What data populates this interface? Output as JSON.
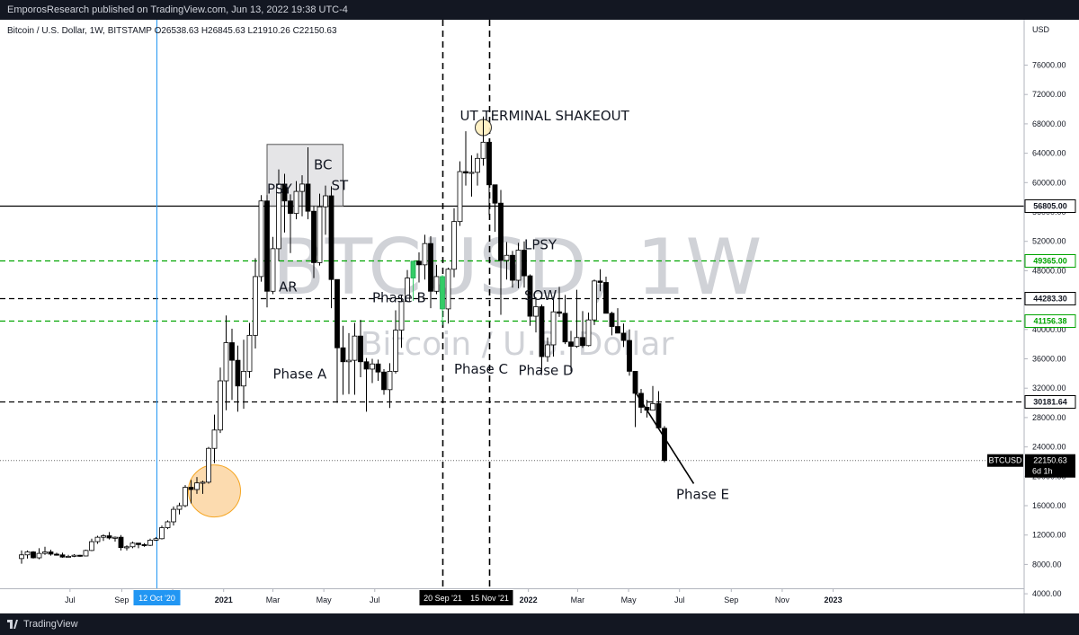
{
  "header": {
    "publish_text": "EmporosResearch published on TradingView.com, Jun 13, 2022 19:38 UTC-4"
  },
  "footer": {
    "brand": "TradingView",
    "logo_icon": "tradingview-logo-icon"
  },
  "chart_data": {
    "type": "candlestick",
    "symbol_line": "Bitcoin / U.S. Dollar, 1W, BITSTAMP  O26538.63  H26845.63  L21910.26  C22150.63",
    "watermark": {
      "ticker": "BTCUSD, 1W",
      "name": "Bitcoin / U.S. Dollar"
    },
    "y_axis": {
      "unit_label": "USD",
      "range": [
        1500,
        80000
      ],
      "ticks": [
        "4000.00",
        "8000.00",
        "12000.00",
        "16000.00",
        "20000.00",
        "24000.00",
        "28000.00",
        "32000.00",
        "36000.00",
        "40000.00",
        "44000.00",
        "48000.00",
        "52000.00",
        "56000.00",
        "60000.00",
        "64000.00",
        "68000.00",
        "72000.00",
        "76000.00"
      ]
    },
    "x_axis": {
      "ticks": [
        "Jul",
        "Sep",
        "Nov",
        "2021",
        "Mar",
        "May",
        "Jul",
        "2022",
        "Mar",
        "May",
        "Jul",
        "Sep",
        "Nov",
        "2023"
      ],
      "highlighted_labels": [
        "12 Oct '20",
        "20 Sep '21",
        "15 Nov '21"
      ]
    },
    "colors": {
      "up": "#ffffff",
      "down": "#000000",
      "green_line": "#00a400",
      "blue_line": "#2196f3",
      "highlight_green": "#33cc66"
    },
    "horizontal_levels": [
      {
        "value": 56805.0,
        "label": "56805.00",
        "style": "solid",
        "color": "#000000"
      },
      {
        "value": 49365.0,
        "label": "49365.00",
        "style": "dashed",
        "color": "#00a400"
      },
      {
        "value": 44283.3,
        "label": "44283.30",
        "style": "dashed",
        "color": "#000000"
      },
      {
        "value": 41156.38,
        "label": "41156.38",
        "style": "dashed",
        "color": "#00a400"
      },
      {
        "value": 30181.64,
        "label": "30181.64",
        "style": "dashed",
        "color": "#000000"
      }
    ],
    "price_label": {
      "symbol": "BTCUSD",
      "value": "22150.63",
      "countdown": "6d 1h",
      "price": 22150.63
    },
    "vertical_lines": [
      {
        "date": "2020-10-12",
        "label": "12 Oct '20",
        "style": "solid",
        "color": "#2196f3"
      },
      {
        "date": "2021-09-20",
        "label": "20 Sep '21",
        "style": "dashed",
        "color": "#000000"
      },
      {
        "date": "2021-11-15",
        "label": "15 Nov '21",
        "style": "dashed",
        "color": "#000000"
      }
    ],
    "annotations": [
      {
        "text": "PSY",
        "date": "2021-02-22",
        "price": 58500
      },
      {
        "text": "BC",
        "date": "2021-04-19",
        "price": 61800
      },
      {
        "text": "ST",
        "date": "2021-05-10",
        "price": 59000
      },
      {
        "text": "AR",
        "date": "2021-03-08",
        "price": 45200
      },
      {
        "text": "Phase A",
        "date": "2021-03-01",
        "price": 33300
      },
      {
        "text": "Phase B",
        "date": "2021-06-28",
        "price": 43700
      },
      {
        "text": "UT TERMINAL SHAKEOUT",
        "date": "2021-10-11",
        "price": 68500
      },
      {
        "text": "Phase C",
        "date": "2021-10-04",
        "price": 34000
      },
      {
        "text": "LPSY",
        "date": "2021-12-27",
        "price": 50900
      },
      {
        "text": "SOW",
        "date": "2021-12-27",
        "price": 44000
      },
      {
        "text": "Phase D",
        "date": "2021-12-20",
        "price": 33800
      },
      {
        "text": "Phase E",
        "date": "2022-06-27",
        "price": 16900
      }
    ],
    "shapes": [
      {
        "kind": "rectangle",
        "from": "2021-02-22",
        "to": "2021-05-24",
        "price_low": 56800,
        "price_high": 65200
      },
      {
        "kind": "circle",
        "center_date": "2020-12-21",
        "center_price": 18000
      },
      {
        "kind": "circle",
        "center_date": "2021-11-08",
        "center_price": 67500
      },
      {
        "kind": "trendline",
        "from_date": "2022-05-09",
        "from_price": 31500,
        "to_date": "2022-07-18",
        "to_price": 19000
      }
    ],
    "candles": [
      {
        "date": "2020-05-04",
        "o": 8800,
        "h": 9900,
        "l": 8100,
        "c": 9300
      },
      {
        "date": "2020-05-11",
        "o": 9300,
        "h": 9900,
        "l": 8800,
        "c": 9700
      },
      {
        "date": "2020-05-18",
        "o": 9700,
        "h": 9800,
        "l": 8800,
        "c": 8900
      },
      {
        "date": "2020-05-25",
        "o": 8900,
        "h": 10200,
        "l": 8700,
        "c": 9500
      },
      {
        "date": "2020-06-01",
        "o": 9500,
        "h": 10400,
        "l": 9300,
        "c": 9700
      },
      {
        "date": "2020-06-08",
        "o": 9700,
        "h": 10000,
        "l": 9200,
        "c": 9400
      },
      {
        "date": "2020-06-15",
        "o": 9400,
        "h": 9600,
        "l": 9200,
        "c": 9300
      },
      {
        "date": "2020-06-22",
        "o": 9300,
        "h": 9600,
        "l": 8900,
        "c": 9000
      },
      {
        "date": "2020-06-29",
        "o": 9000,
        "h": 9300,
        "l": 8900,
        "c": 9100
      },
      {
        "date": "2020-07-06",
        "o": 9100,
        "h": 9400,
        "l": 9000,
        "c": 9250
      },
      {
        "date": "2020-07-13",
        "o": 9250,
        "h": 9300,
        "l": 9050,
        "c": 9150
      },
      {
        "date": "2020-07-20",
        "o": 9150,
        "h": 10000,
        "l": 9100,
        "c": 9900
      },
      {
        "date": "2020-07-27",
        "o": 9900,
        "h": 11500,
        "l": 9800,
        "c": 11100
      },
      {
        "date": "2020-08-03",
        "o": 11100,
        "h": 11900,
        "l": 10800,
        "c": 11700
      },
      {
        "date": "2020-08-10",
        "o": 11700,
        "h": 12100,
        "l": 11200,
        "c": 11900
      },
      {
        "date": "2020-08-17",
        "o": 11900,
        "h": 12400,
        "l": 11400,
        "c": 11600
      },
      {
        "date": "2020-08-24",
        "o": 11600,
        "h": 11800,
        "l": 11100,
        "c": 11700
      },
      {
        "date": "2020-08-31",
        "o": 11700,
        "h": 12000,
        "l": 9900,
        "c": 10300
      },
      {
        "date": "2020-09-07",
        "o": 10300,
        "h": 10600,
        "l": 9900,
        "c": 10400
      },
      {
        "date": "2020-09-14",
        "o": 10400,
        "h": 11100,
        "l": 10200,
        "c": 10900
      },
      {
        "date": "2020-09-21",
        "o": 10900,
        "h": 10900,
        "l": 10200,
        "c": 10700
      },
      {
        "date": "2020-09-28",
        "o": 10700,
        "h": 10900,
        "l": 10400,
        "c": 10600
      },
      {
        "date": "2020-10-05",
        "o": 10600,
        "h": 11500,
        "l": 10500,
        "c": 11300
      },
      {
        "date": "2020-10-12",
        "o": 11300,
        "h": 11700,
        "l": 11200,
        "c": 11500
      },
      {
        "date": "2020-10-19",
        "o": 11500,
        "h": 13300,
        "l": 11400,
        "c": 13000
      },
      {
        "date": "2020-10-26",
        "o": 13000,
        "h": 14000,
        "l": 12800,
        "c": 13800
      },
      {
        "date": "2020-11-02",
        "o": 13800,
        "h": 15900,
        "l": 13300,
        "c": 15500
      },
      {
        "date": "2020-11-09",
        "o": 15500,
        "h": 16400,
        "l": 14800,
        "c": 16000
      },
      {
        "date": "2020-11-16",
        "o": 16000,
        "h": 18800,
        "l": 15800,
        "c": 18500
      },
      {
        "date": "2020-11-23",
        "o": 18500,
        "h": 19500,
        "l": 16300,
        "c": 18200
      },
      {
        "date": "2020-11-30",
        "o": 18200,
        "h": 19900,
        "l": 17600,
        "c": 19100
      },
      {
        "date": "2020-12-07",
        "o": 19100,
        "h": 19400,
        "l": 17600,
        "c": 19200
      },
      {
        "date": "2020-12-14",
        "o": 19200,
        "h": 24000,
        "l": 19000,
        "c": 23800
      },
      {
        "date": "2020-12-21",
        "o": 23800,
        "h": 28400,
        "l": 21800,
        "c": 26300
      },
      {
        "date": "2020-12-28",
        "o": 26300,
        "h": 34800,
        "l": 25900,
        "c": 33000
      },
      {
        "date": "2021-01-04",
        "o": 33000,
        "h": 41900,
        "l": 29000,
        "c": 38200
      },
      {
        "date": "2021-01-11",
        "o": 38200,
        "h": 40100,
        "l": 30400,
        "c": 35800
      },
      {
        "date": "2021-01-18",
        "o": 35800,
        "h": 37800,
        "l": 28800,
        "c": 32300
      },
      {
        "date": "2021-01-25",
        "o": 32300,
        "h": 38600,
        "l": 29200,
        "c": 34300
      },
      {
        "date": "2021-02-01",
        "o": 34300,
        "h": 40900,
        "l": 33400,
        "c": 39200
      },
      {
        "date": "2021-02-08",
        "o": 39200,
        "h": 49700,
        "l": 37400,
        "c": 47200
      },
      {
        "date": "2021-02-15",
        "o": 47200,
        "h": 58300,
        "l": 46500,
        "c": 57500
      },
      {
        "date": "2021-02-22",
        "o": 57500,
        "h": 58300,
        "l": 43000,
        "c": 45200
      },
      {
        "date": "2021-03-01",
        "o": 45200,
        "h": 52600,
        "l": 44800,
        "c": 51000
      },
      {
        "date": "2021-03-08",
        "o": 51000,
        "h": 61800,
        "l": 49300,
        "c": 59800
      },
      {
        "date": "2021-03-15",
        "o": 59800,
        "h": 61200,
        "l": 53200,
        "c": 57500
      },
      {
        "date": "2021-03-22",
        "o": 57500,
        "h": 58400,
        "l": 50400,
        "c": 55800
      },
      {
        "date": "2021-03-29",
        "o": 55800,
        "h": 60200,
        "l": 55000,
        "c": 58800
      },
      {
        "date": "2021-04-05",
        "o": 58800,
        "h": 61000,
        "l": 55400,
        "c": 59800
      },
      {
        "date": "2021-04-12",
        "o": 59800,
        "h": 64800,
        "l": 55000,
        "c": 56100
      },
      {
        "date": "2021-04-19",
        "o": 56100,
        "h": 56800,
        "l": 47000,
        "c": 49100
      },
      {
        "date": "2021-04-26",
        "o": 49100,
        "h": 58500,
        "l": 48700,
        "c": 56700
      },
      {
        "date": "2021-05-03",
        "o": 56700,
        "h": 59600,
        "l": 52900,
        "c": 58200
      },
      {
        "date": "2021-05-10",
        "o": 58200,
        "h": 59500,
        "l": 42900,
        "c": 46800
      },
      {
        "date": "2021-05-17",
        "o": 46800,
        "h": 46800,
        "l": 30000,
        "c": 37500
      },
      {
        "date": "2021-05-24",
        "o": 37500,
        "h": 40500,
        "l": 31100,
        "c": 35600
      },
      {
        "date": "2021-05-31",
        "o": 35600,
        "h": 39500,
        "l": 31200,
        "c": 35800
      },
      {
        "date": "2021-06-07",
        "o": 35800,
        "h": 40900,
        "l": 31100,
        "c": 39100
      },
      {
        "date": "2021-06-14",
        "o": 39100,
        "h": 41300,
        "l": 33500,
        "c": 35600
      },
      {
        "date": "2021-06-21",
        "o": 35600,
        "h": 36100,
        "l": 28800,
        "c": 34600
      },
      {
        "date": "2021-06-28",
        "o": 34600,
        "h": 36000,
        "l": 32700,
        "c": 35300
      },
      {
        "date": "2021-07-05",
        "o": 35300,
        "h": 35900,
        "l": 33000,
        "c": 34200
      },
      {
        "date": "2021-07-12",
        "o": 34200,
        "h": 34600,
        "l": 31100,
        "c": 31800
      },
      {
        "date": "2021-07-19",
        "o": 31800,
        "h": 35400,
        "l": 29300,
        "c": 34300
      },
      {
        "date": "2021-07-26",
        "o": 34300,
        "h": 42600,
        "l": 34000,
        "c": 39900
      },
      {
        "date": "2021-08-02",
        "o": 39900,
        "h": 44700,
        "l": 37500,
        "c": 43800
      },
      {
        "date": "2021-08-09",
        "o": 43800,
        "h": 48100,
        "l": 43800,
        "c": 47000
      },
      {
        "date": "2021-08-16",
        "o": 47000,
        "h": 49300,
        "l": 43900,
        "c": 49300
      },
      {
        "date": "2021-08-23",
        "o": 49300,
        "h": 50500,
        "l": 46400,
        "c": 48800
      },
      {
        "date": "2021-08-30",
        "o": 48800,
        "h": 52900,
        "l": 46800,
        "c": 51700
      },
      {
        "date": "2021-09-06",
        "o": 51700,
        "h": 52700,
        "l": 42900,
        "c": 45200
      },
      {
        "date": "2021-09-13",
        "o": 45200,
        "h": 48800,
        "l": 44800,
        "c": 47200
      },
      {
        "date": "2021-09-20",
        "o": 47200,
        "h": 47400,
        "l": 40600,
        "c": 42800
      },
      {
        "date": "2021-09-27",
        "o": 42800,
        "h": 48400,
        "l": 40800,
        "c": 48200
      },
      {
        "date": "2021-10-04",
        "o": 48200,
        "h": 56500,
        "l": 47100,
        "c": 54700
      },
      {
        "date": "2021-10-11",
        "o": 54700,
        "h": 62900,
        "l": 54100,
        "c": 61500
      },
      {
        "date": "2021-10-18",
        "o": 61500,
        "h": 67000,
        "l": 59600,
        "c": 61300
      },
      {
        "date": "2021-10-25",
        "o": 61300,
        "h": 63700,
        "l": 58100,
        "c": 61400
      },
      {
        "date": "2021-11-01",
        "o": 61400,
        "h": 64000,
        "l": 59600,
        "c": 63300
      },
      {
        "date": "2021-11-08",
        "o": 63300,
        "h": 69000,
        "l": 62300,
        "c": 65500
      },
      {
        "date": "2021-11-15",
        "o": 65500,
        "h": 66000,
        "l": 55600,
        "c": 59700
      },
      {
        "date": "2021-11-22",
        "o": 59700,
        "h": 59700,
        "l": 53300,
        "c": 57200
      },
      {
        "date": "2021-11-29",
        "o": 57200,
        "h": 59000,
        "l": 42000,
        "c": 49400
      },
      {
        "date": "2021-12-06",
        "o": 49400,
        "h": 51900,
        "l": 46800,
        "c": 50100
      },
      {
        "date": "2021-12-13",
        "o": 50100,
        "h": 50700,
        "l": 45700,
        "c": 46700
      },
      {
        "date": "2021-12-20",
        "o": 46700,
        "h": 51800,
        "l": 45600,
        "c": 50800
      },
      {
        "date": "2021-12-27",
        "o": 50800,
        "h": 52000,
        "l": 45700,
        "c": 47300
      },
      {
        "date": "2022-01-03",
        "o": 47300,
        "h": 47500,
        "l": 40500,
        "c": 41800
      },
      {
        "date": "2022-01-10",
        "o": 41800,
        "h": 44400,
        "l": 39600,
        "c": 43100
      },
      {
        "date": "2022-01-17",
        "o": 43100,
        "h": 43400,
        "l": 34100,
        "c": 36300
      },
      {
        "date": "2022-01-24",
        "o": 36300,
        "h": 38900,
        "l": 35600,
        "c": 37900
      },
      {
        "date": "2022-01-31",
        "o": 37900,
        "h": 44400,
        "l": 36300,
        "c": 42400
      },
      {
        "date": "2022-02-07",
        "o": 42400,
        "h": 45800,
        "l": 41700,
        "c": 42200
      },
      {
        "date": "2022-02-14",
        "o": 42200,
        "h": 44700,
        "l": 38000,
        "c": 38300
      },
      {
        "date": "2022-02-21",
        "o": 38300,
        "h": 39800,
        "l": 34300,
        "c": 37700
      },
      {
        "date": "2022-02-28",
        "o": 37700,
        "h": 45400,
        "l": 37500,
        "c": 38900
      },
      {
        "date": "2022-03-07",
        "o": 38900,
        "h": 42500,
        "l": 37500,
        "c": 37800
      },
      {
        "date": "2022-03-14",
        "o": 37800,
        "h": 42300,
        "l": 37700,
        "c": 41300
      },
      {
        "date": "2022-03-21",
        "o": 41300,
        "h": 46800,
        "l": 40600,
        "c": 46600
      },
      {
        "date": "2022-03-28",
        "o": 46600,
        "h": 48200,
        "l": 45200,
        "c": 46400
      },
      {
        "date": "2022-04-04",
        "o": 46400,
        "h": 47200,
        "l": 42200,
        "c": 42200
      },
      {
        "date": "2022-04-11",
        "o": 42200,
        "h": 42400,
        "l": 39200,
        "c": 40400
      },
      {
        "date": "2022-04-18",
        "o": 40400,
        "h": 42900,
        "l": 39500,
        "c": 39500
      },
      {
        "date": "2022-04-25",
        "o": 39500,
        "h": 40800,
        "l": 37600,
        "c": 38500
      },
      {
        "date": "2022-05-02",
        "o": 38500,
        "h": 40000,
        "l": 33700,
        "c": 34300
      },
      {
        "date": "2022-05-09",
        "o": 34300,
        "h": 34300,
        "l": 26700,
        "c": 31300
      },
      {
        "date": "2022-05-16",
        "o": 31300,
        "h": 31900,
        "l": 28600,
        "c": 29400
      },
      {
        "date": "2022-05-23",
        "o": 29400,
        "h": 30400,
        "l": 28000,
        "c": 29000
      },
      {
        "date": "2022-05-30",
        "o": 29000,
        "h": 32300,
        "l": 29300,
        "c": 29900
      },
      {
        "date": "2022-06-06",
        "o": 29900,
        "h": 31600,
        "l": 26600,
        "c": 26600
      },
      {
        "date": "2022-06-13",
        "o": 26538.63,
        "h": 26845.63,
        "l": 21910.26,
        "c": 22150.63
      }
    ]
  }
}
